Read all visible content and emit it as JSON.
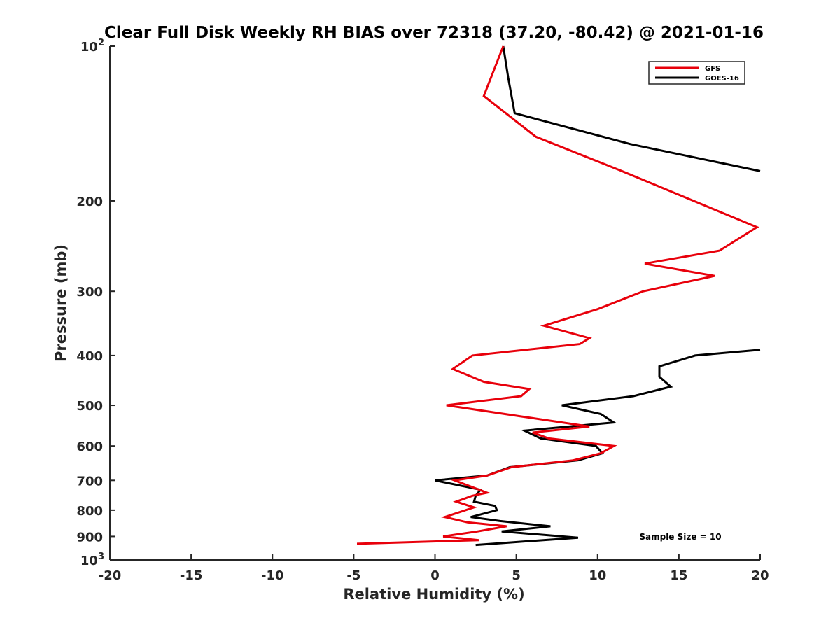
{
  "chart_data": {
    "type": "line",
    "title": "Clear Full Disk Weekly RH BIAS over 72318 (37.20, -80.42) @ 2021-01-16",
    "xlabel": "Relative Humidity (%)",
    "ylabel": "Pressure (mb)",
    "xlim": [
      -20,
      20
    ],
    "ylim": [
      100,
      1000
    ],
    "y_scale": "log",
    "y_reversed": true,
    "x_ticks": [
      "-20",
      "-15",
      "-10",
      "-5",
      "0",
      "5",
      "10",
      "15",
      "20"
    ],
    "y_ticks": [
      {
        "value": 100,
        "base": "10",
        "exp": "2"
      },
      {
        "value": 200,
        "label": "200"
      },
      {
        "value": 300,
        "label": "300"
      },
      {
        "value": 400,
        "label": "400"
      },
      {
        "value": 500,
        "label": "500"
      },
      {
        "value": 600,
        "label": "600"
      },
      {
        "value": 700,
        "label": "700"
      },
      {
        "value": 800,
        "label": "800"
      },
      {
        "value": 900,
        "label": "900"
      },
      {
        "value": 1000,
        "base": "10",
        "exp": "3"
      }
    ],
    "grid": false,
    "legend_position": "top-right",
    "annotation": "Sample Size = 10",
    "series": [
      {
        "name": "GFS",
        "color": "#e8000b",
        "points": [
          [
            4.2,
            100
          ],
          [
            3.0,
            125
          ],
          [
            6.2,
            150
          ],
          [
            11.5,
            175
          ],
          [
            19.8,
            225
          ],
          [
            17.5,
            250
          ],
          [
            12.9,
            265
          ],
          [
            17.2,
            280
          ],
          [
            12.8,
            300
          ],
          [
            10.0,
            325
          ],
          [
            6.7,
            350
          ],
          [
            9.5,
            370
          ],
          [
            8.9,
            380
          ],
          [
            2.3,
            400
          ],
          [
            1.1,
            425
          ],
          [
            3.0,
            450
          ],
          [
            5.8,
            465
          ],
          [
            5.3,
            480
          ],
          [
            0.7,
            500
          ],
          [
            5.2,
            525
          ],
          [
            9.5,
            550
          ],
          [
            6.0,
            565
          ],
          [
            7.0,
            580
          ],
          [
            11.0,
            600
          ],
          [
            10.2,
            620
          ],
          [
            8.5,
            640
          ],
          [
            4.7,
            660
          ],
          [
            3.2,
            685
          ],
          [
            1.2,
            700
          ],
          [
            3.2,
            740
          ],
          [
            2.3,
            750
          ],
          [
            1.3,
            770
          ],
          [
            2.4,
            790
          ],
          [
            0.6,
            825
          ],
          [
            2.0,
            845
          ],
          [
            4.4,
            860
          ],
          [
            2.6,
            880
          ],
          [
            0.5,
            900
          ],
          [
            2.7,
            915
          ],
          [
            -4.8,
            930
          ]
        ]
      },
      {
        "name": "GOES-16",
        "color": "#000000",
        "points": [
          [
            4.2,
            100
          ],
          [
            4.5,
            115
          ],
          [
            4.9,
            135
          ],
          [
            12.0,
            155
          ],
          [
            20.0,
            175
          ],
          [
            null,
            180
          ],
          [
            20.0,
            390
          ],
          [
            16.0,
            400
          ],
          [
            13.8,
            420
          ],
          [
            13.8,
            440
          ],
          [
            14.5,
            460
          ],
          [
            12.2,
            480
          ],
          [
            7.8,
            500
          ],
          [
            10.2,
            520
          ],
          [
            11.0,
            540
          ],
          [
            5.5,
            560
          ],
          [
            6.5,
            580
          ],
          [
            9.9,
            600
          ],
          [
            10.3,
            620
          ],
          [
            8.8,
            640
          ],
          [
            4.6,
            660
          ],
          [
            3.2,
            685
          ],
          [
            0.0,
            700
          ],
          [
            2.8,
            730
          ],
          [
            2.5,
            750
          ],
          [
            2.4,
            770
          ],
          [
            3.7,
            785
          ],
          [
            3.8,
            800
          ],
          [
            2.2,
            825
          ],
          [
            4.0,
            840
          ],
          [
            7.1,
            860
          ],
          [
            4.1,
            880
          ],
          [
            8.8,
            905
          ],
          [
            2.5,
            935
          ]
        ]
      }
    ]
  }
}
